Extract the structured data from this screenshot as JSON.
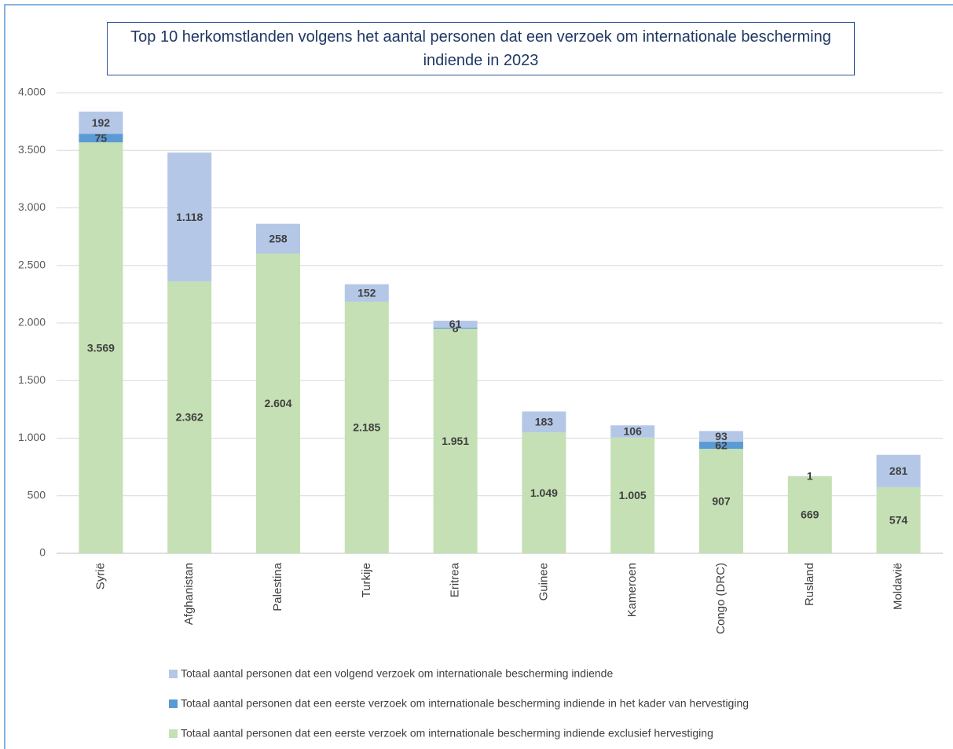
{
  "chart_data": {
    "type": "stacked_bar",
    "title": "Top 10 herkomstlanden volgens het aantal personen dat een verzoek om internationale bescherming indiende in 2023",
    "categories": [
      "Syrië",
      "Afghanistan",
      "Palestina",
      "Turkije",
      "Eritrea",
      "Guinee",
      "Kameroen",
      "Congo (DRC)",
      "Rusland",
      "Moldavië"
    ],
    "series": [
      {
        "name": "Totaal aantal personen dat een eerste verzoek om internationale bescherming indiende exclusief hervestiging",
        "color": "#c5e0b4",
        "values": [
          3569,
          2362,
          2604,
          2185,
          1951,
          1049,
          1005,
          907,
          669,
          574
        ],
        "value_labels": [
          "3.569",
          "2.362",
          "2.604",
          "2.185",
          "1.951",
          "1.049",
          "1.005",
          "907",
          "669",
          "574"
        ]
      },
      {
        "name": "Totaal aantal personen dat een eerste verzoek om internationale bescherming indiende in het kader van hervestiging",
        "color": "#5b9bd5",
        "values": [
          75,
          null,
          null,
          null,
          8,
          null,
          null,
          62,
          null,
          null
        ]
      },
      {
        "name": "Totaal aantal personen dat een volgend verzoek om internationale bescherming indiende",
        "color": "#b4c7e7",
        "values": [
          192,
          1118,
          258,
          152,
          61,
          183,
          106,
          93,
          1,
          281
        ],
        "value_labels": [
          "192",
          "1.118",
          "258",
          "152",
          "61",
          "183",
          "106",
          "93",
          "1",
          "281"
        ]
      }
    ],
    "ylim": [
      0,
      4000
    ],
    "yticks": [
      0,
      500,
      {
        "value": 1000,
        "label": "1.000"
      },
      {
        "value": 1500,
        "label": "1.500"
      },
      {
        "value": 2000,
        "label": "2.000"
      },
      {
        "value": 2500,
        "label": "2.500"
      },
      {
        "value": 3000,
        "label": "3.000"
      },
      {
        "value": 3500,
        "label": "3.500"
      },
      {
        "value": 4000,
        "label": "4.000"
      }
    ],
    "grid": true
  }
}
